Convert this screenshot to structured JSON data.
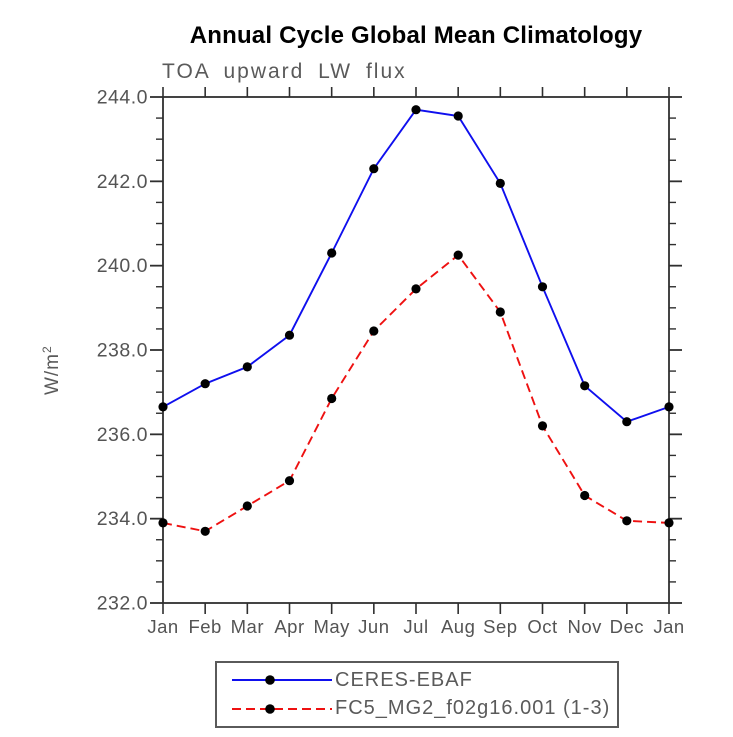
{
  "title": "Annual Cycle Global Mean Climatology",
  "subtitle": "TOA upward LW flux",
  "chart_data": {
    "type": "line",
    "x": [
      "Jan",
      "Feb",
      "Mar",
      "Apr",
      "May",
      "Jun",
      "Jul",
      "Aug",
      "Sep",
      "Oct",
      "Nov",
      "Dec",
      "Jan"
    ],
    "ylabel": "W/m",
    "ylabel_sup": "2",
    "ylim": [
      232.0,
      244.0
    ],
    "ytick_major_step": 2.0,
    "ytick_minor_step": 0.5,
    "ytick_labels": [
      "232.0",
      "234.0",
      "236.0",
      "238.0",
      "240.0",
      "242.0",
      "244.0"
    ],
    "grid": false,
    "legend_position": "bottom",
    "series": [
      {
        "name": "CERES-EBAF",
        "color": "#0f0fee",
        "style": "solid",
        "marker": "circle",
        "marker_color": "#000000",
        "values": [
          236.65,
          237.2,
          237.6,
          238.35,
          240.3,
          242.3,
          243.7,
          243.55,
          241.95,
          239.5,
          237.15,
          236.3,
          236.65
        ]
      },
      {
        "name": "FC5_MG2_f02g16.001 (1-3)",
        "color": "#ee1111",
        "style": "dashed",
        "marker": "circle",
        "marker_color": "#000000",
        "values": [
          233.9,
          233.7,
          234.3,
          234.9,
          236.85,
          238.45,
          239.45,
          240.25,
          238.9,
          236.2,
          234.55,
          233.95,
          233.9
        ]
      }
    ]
  },
  "legend": {
    "items": [
      {
        "label": "CERES-EBAF",
        "color": "#0f0fee",
        "style": "solid"
      },
      {
        "label": "FC5_MG2_f02g16.001 (1-3)",
        "color": "#ee1111",
        "style": "dashed"
      }
    ]
  }
}
